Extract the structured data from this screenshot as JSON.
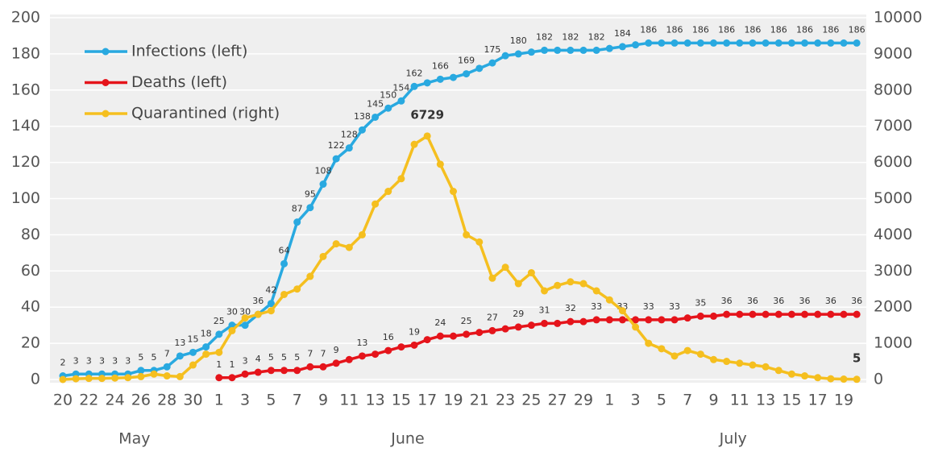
{
  "chart_data": {
    "type": "line",
    "categories": [
      "20",
      null,
      "22",
      null,
      "24",
      null,
      "26",
      null,
      "28",
      null,
      "30",
      null,
      "1",
      null,
      "3",
      null,
      "5",
      null,
      "7",
      null,
      "9",
      null,
      "11",
      null,
      "13",
      null,
      "15",
      null,
      "17",
      null,
      "19",
      null,
      "21",
      null,
      "23",
      null,
      "25",
      null,
      "27",
      null,
      "29",
      null,
      "1",
      null,
      "3",
      null,
      "5",
      null,
      "7",
      null,
      "9",
      null,
      "11",
      null,
      "13",
      null,
      "15",
      null,
      "17",
      null,
      "19",
      null
    ],
    "months": [
      "May",
      "June",
      "July"
    ],
    "ylim": [
      0,
      200
    ],
    "yticks": [
      0,
      20,
      40,
      60,
      80,
      100,
      120,
      140,
      160,
      180,
      200
    ],
    "y2lim": [
      0,
      10000
    ],
    "y2ticks": [
      0,
      1000,
      2000,
      3000,
      4000,
      5000,
      6000,
      7000,
      8000,
      9000,
      10000
    ],
    "grid": true,
    "legend": "upper left",
    "series": [
      {
        "name": "Infections (left)",
        "color": "#29a9e0",
        "axis": "y",
        "values": [
          2,
          3,
          3,
          3,
          3,
          3,
          5,
          5,
          7,
          13,
          15,
          18,
          25,
          30,
          30,
          36,
          42,
          64,
          87,
          95,
          108,
          122,
          128,
          138,
          145,
          150,
          154,
          162,
          164,
          166,
          167,
          169,
          172,
          175,
          179,
          180,
          181,
          182,
          182,
          182,
          182,
          182,
          183,
          184,
          185,
          186,
          186,
          186,
          186,
          186,
          186,
          186,
          186,
          186,
          186,
          186,
          186,
          186,
          186,
          186,
          186,
          186
        ],
        "value_labels": [
          "2",
          "3",
          "3",
          "3",
          "3",
          "3",
          "5",
          "5",
          "7",
          "13",
          "15",
          "18",
          "25",
          "30",
          "30",
          "36",
          "42",
          "64",
          "87",
          "95",
          "108",
          "122",
          "128",
          "138",
          "145",
          "150",
          "154",
          "162",
          null,
          "166",
          null,
          "169",
          null,
          "175",
          null,
          "180",
          null,
          "182",
          null,
          "182",
          null,
          "182",
          null,
          "184",
          null,
          "186",
          null,
          "186",
          null,
          "186",
          null,
          "186",
          null,
          "186",
          null,
          "186",
          null,
          "186",
          null,
          "186",
          null,
          "186"
        ]
      },
      {
        "name": "Deaths (left)",
        "color": "#e5141b",
        "axis": "y",
        "values": [
          null,
          null,
          null,
          null,
          null,
          null,
          null,
          null,
          null,
          null,
          null,
          null,
          1,
          1,
          3,
          4,
          5,
          5,
          5,
          7,
          7,
          9,
          11,
          13,
          14,
          16,
          18,
          19,
          22,
          24,
          24,
          25,
          26,
          27,
          28,
          29,
          30,
          31,
          31,
          32,
          32,
          33,
          33,
          33,
          33,
          33,
          33,
          33,
          34,
          35,
          35,
          36,
          36,
          36,
          36,
          36,
          36,
          36,
          36,
          36,
          36,
          36
        ],
        "value_labels": [
          null,
          null,
          null,
          null,
          null,
          null,
          null,
          null,
          null,
          null,
          null,
          null,
          "1",
          "1",
          "3",
          "4",
          "5",
          "5",
          "5",
          "7",
          "7",
          "9",
          null,
          "13",
          null,
          "16",
          null,
          "19",
          null,
          "24",
          null,
          "25",
          null,
          "27",
          null,
          "29",
          null,
          "31",
          null,
          "32",
          null,
          "33",
          null,
          "33",
          null,
          "33",
          null,
          "33",
          null,
          "35",
          null,
          "36",
          null,
          "36",
          null,
          "36",
          null,
          "36",
          null,
          "36",
          null,
          "36"
        ]
      },
      {
        "name": "Quarantined (right)",
        "color": "#f5bf1f",
        "axis": "y2",
        "values": [
          0,
          20,
          30,
          30,
          40,
          50,
          80,
          150,
          100,
          80,
          400,
          700,
          750,
          1350,
          1700,
          1800,
          1900,
          2350,
          2500,
          2850,
          3400,
          3750,
          3650,
          4000,
          4850,
          5200,
          5550,
          6500,
          6729,
          5950,
          5200,
          4000,
          3800,
          2800,
          3100,
          2650,
          2950,
          2450,
          2600,
          2700,
          2650,
          2450,
          2200,
          1900,
          1450,
          1000,
          850,
          650,
          800,
          700,
          550,
          500,
          450,
          400,
          350,
          250,
          150,
          100,
          50,
          20,
          10,
          5
        ],
        "value_labels": [
          null,
          null,
          null,
          null,
          null,
          null,
          null,
          null,
          null,
          null,
          null,
          null,
          null,
          null,
          null,
          null,
          null,
          null,
          null,
          null,
          null,
          null,
          null,
          null,
          null,
          null,
          null,
          null,
          "6729",
          null,
          null,
          null,
          null,
          null,
          null,
          null,
          null,
          null,
          null,
          null,
          null,
          null,
          null,
          null,
          null,
          null,
          null,
          null,
          null,
          null,
          null,
          null,
          null,
          null,
          null,
          null,
          null,
          null,
          null,
          null,
          null,
          "5"
        ]
      }
    ]
  }
}
